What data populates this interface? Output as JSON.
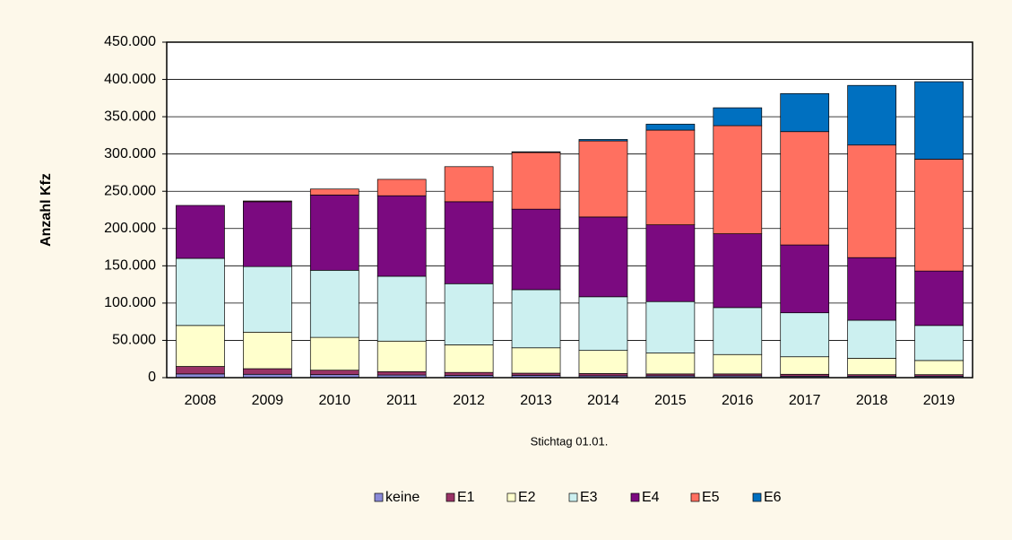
{
  "chart_data": {
    "type": "stacked_bar",
    "y_label": "Anzahl Kfz",
    "x_label": "Stichtag 01.01.",
    "categories": [
      "2008",
      "2009",
      "2010",
      "2011",
      "2012",
      "2013",
      "2014",
      "2015",
      "2016",
      "2017",
      "2018",
      "2019"
    ],
    "series": [
      {
        "name": "keine",
        "color": "#8a8ad8",
        "values": [
          5000,
          4500,
          4000,
          3500,
          3000,
          3000,
          2500,
          2500,
          2500,
          2000,
          2000,
          2000
        ]
      },
      {
        "name": "E1",
        "color": "#993366",
        "values": [
          10000,
          7500,
          6000,
          4500,
          4000,
          3000,
          3000,
          2500,
          2500,
          2500,
          2000,
          2000
        ]
      },
      {
        "name": "E2",
        "color": "#ffffcc",
        "values": [
          55000,
          49000,
          44000,
          41000,
          37000,
          34000,
          31000,
          28000,
          26000,
          23500,
          22000,
          19000
        ]
      },
      {
        "name": "E3",
        "color": "#ccf0f0",
        "values": [
          90000,
          88000,
          90000,
          87000,
          82000,
          78000,
          72000,
          69000,
          63000,
          59000,
          51000,
          47000
        ]
      },
      {
        "name": "E4",
        "color": "#7b0a80",
        "values": [
          71000,
          87000,
          101000,
          108000,
          110000,
          108000,
          107000,
          103000,
          99000,
          91000,
          84000,
          73000
        ]
      },
      {
        "name": "E5",
        "color": "#ff7060",
        "values": [
          0,
          1000,
          8000,
          22000,
          47000,
          76000,
          102000,
          127000,
          145000,
          152000,
          151000,
          150000
        ]
      },
      {
        "name": "E6",
        "color": "#0070c0",
        "values": [
          0,
          0,
          0,
          0,
          0,
          1000,
          2000,
          8000,
          24000,
          51000,
          80000,
          104000
        ]
      }
    ],
    "ylim": [
      0,
      450000
    ],
    "yticks": [
      0,
      {
        "value": 50000,
        "label": "50.000"
      },
      {
        "value": 100000,
        "label": "100.000"
      },
      {
        "value": 150000,
        "label": "150.000"
      },
      {
        "value": 200000,
        "label": "200.000"
      },
      {
        "value": 250000,
        "label": "250.000"
      },
      {
        "value": 300000,
        "label": "300.000"
      },
      {
        "value": 350000,
        "label": "350.000"
      },
      {
        "value": 400000,
        "label": "400.000"
      },
      {
        "value": 450000,
        "label": "450.000"
      }
    ],
    "grid": true,
    "legend": "bottom"
  }
}
